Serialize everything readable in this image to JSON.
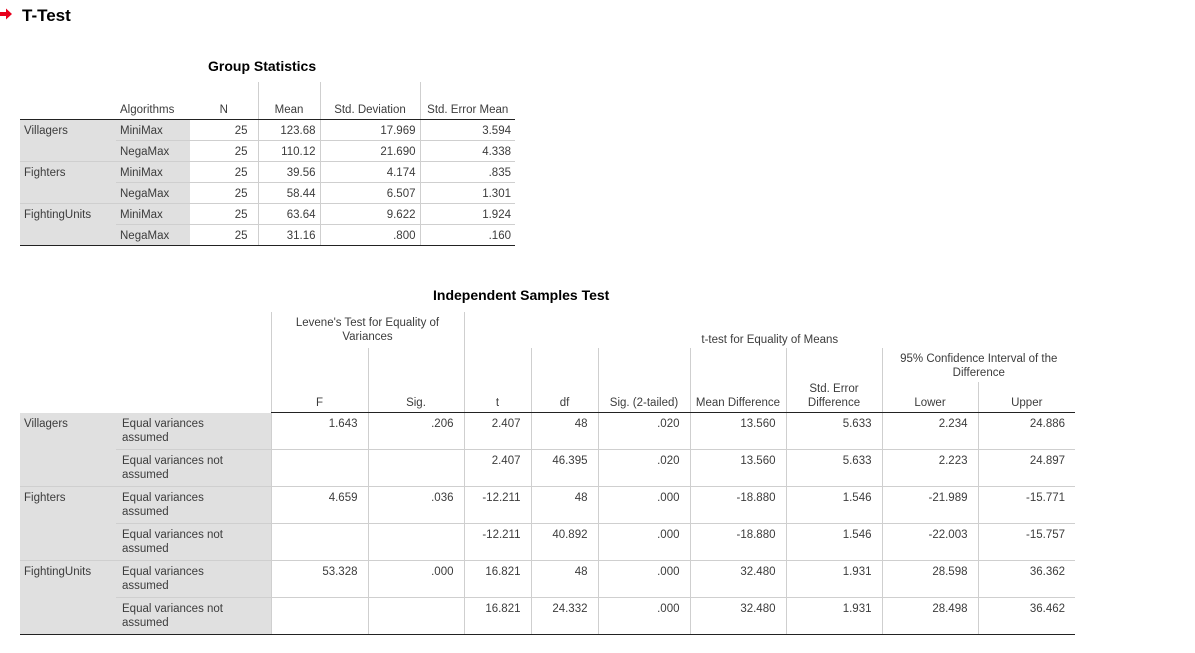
{
  "header": {
    "title": "T-Test",
    "arrow_color": "#e8001c"
  },
  "group_statistics": {
    "title": "Group Statistics",
    "columns": {
      "algorithms": "Algorithms",
      "n": "N",
      "mean": "Mean",
      "std_dev": "Std. Deviation",
      "std_err": "Std. Error Mean"
    },
    "rows": [
      {
        "group": "Villagers",
        "algorithm": "MiniMax",
        "n": "25",
        "mean": "123.68",
        "std_dev": "17.969",
        "std_err": "3.594"
      },
      {
        "group": "",
        "algorithm": "NegaMax",
        "n": "25",
        "mean": "110.12",
        "std_dev": "21.690",
        "std_err": "4.338"
      },
      {
        "group": "Fighters",
        "algorithm": "MiniMax",
        "n": "25",
        "mean": "39.56",
        "std_dev": "4.174",
        "std_err": ".835"
      },
      {
        "group": "",
        "algorithm": "NegaMax",
        "n": "25",
        "mean": "58.44",
        "std_dev": "6.507",
        "std_err": "1.301"
      },
      {
        "group": "FightingUnits",
        "algorithm": "MiniMax",
        "n": "25",
        "mean": "63.64",
        "std_dev": "9.622",
        "std_err": "1.924"
      },
      {
        "group": "",
        "algorithm": "NegaMax",
        "n": "25",
        "mean": "31.16",
        "std_dev": ".800",
        "std_err": ".160"
      }
    ]
  },
  "independent_samples": {
    "title": "Independent Samples Test",
    "levene_header": "Levene's Test for Equality of Variances",
    "ttest_header": "t-test for Equality of Means",
    "ci_header": "95% Confidence Interval of the Difference",
    "columns": {
      "f": "F",
      "sig": "Sig.",
      "t": "t",
      "df": "df",
      "sig2": "Sig. (2-tailed)",
      "mean_diff": "Mean Difference",
      "se_diff": "Std. Error Difference",
      "lower": "Lower",
      "upper": "Upper"
    },
    "rows": [
      {
        "group": "Villagers",
        "assumption": "Equal variances assumed",
        "f": "1.643",
        "sig": ".206",
        "t": "2.407",
        "df": "48",
        "sig2": ".020",
        "mean_diff": "13.560",
        "se_diff": "5.633",
        "lower": "2.234",
        "upper": "24.886"
      },
      {
        "group": "",
        "assumption": "Equal variances not assumed",
        "f": "",
        "sig": "",
        "t": "2.407",
        "df": "46.395",
        "sig2": ".020",
        "mean_diff": "13.560",
        "se_diff": "5.633",
        "lower": "2.223",
        "upper": "24.897"
      },
      {
        "group": "Fighters",
        "assumption": "Equal variances assumed",
        "f": "4.659",
        "sig": ".036",
        "t": "-12.211",
        "df": "48",
        "sig2": ".000",
        "mean_diff": "-18.880",
        "se_diff": "1.546",
        "lower": "-21.989",
        "upper": "-15.771"
      },
      {
        "group": "",
        "assumption": "Equal variances not assumed",
        "f": "",
        "sig": "",
        "t": "-12.211",
        "df": "40.892",
        "sig2": ".000",
        "mean_diff": "-18.880",
        "se_diff": "1.546",
        "lower": "-22.003",
        "upper": "-15.757"
      },
      {
        "group": "FightingUnits",
        "assumption": "Equal variances assumed",
        "f": "53.328",
        "sig": ".000",
        "t": "16.821",
        "df": "48",
        "sig2": ".000",
        "mean_diff": "32.480",
        "se_diff": "1.931",
        "lower": "28.598",
        "upper": "36.362"
      },
      {
        "group": "",
        "assumption": "Equal variances not assumed",
        "f": "",
        "sig": "",
        "t": "16.821",
        "df": "24.332",
        "sig2": ".000",
        "mean_diff": "32.480",
        "se_diff": "1.931",
        "lower": "28.498",
        "upper": "36.462"
      }
    ]
  }
}
